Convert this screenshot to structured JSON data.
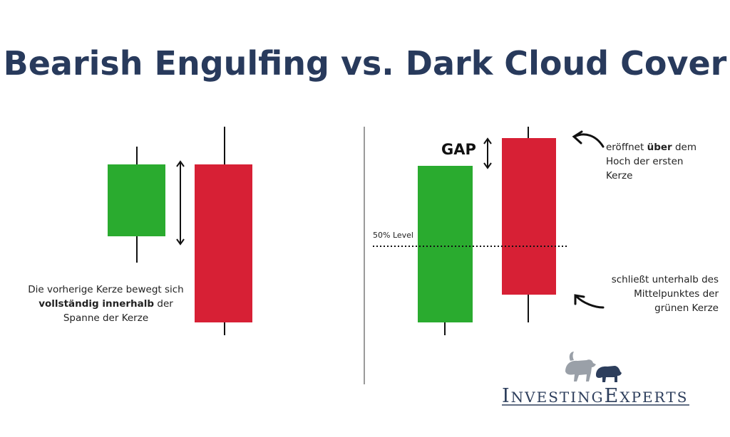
{
  "title": "Bearish Engulfing vs. Dark Cloud Cover",
  "left_panel": {
    "note_part1": "Die vorherige Kerze bewegt sich ",
    "note_bold": "vollständig innerhalb",
    "note_part2": " der Spanne der Kerze"
  },
  "right_panel": {
    "gap_label": "GAP",
    "level_label": "50% Level",
    "open_note_part1": "eröffnet ",
    "open_note_bold": "über",
    "open_note_part2": " dem Hoch der ersten Kerze",
    "close_note": "schließt unterhalb des Mittelpunktes der grünen Kerze"
  },
  "logo": {
    "brand_first_initial": "I",
    "brand_first_rest": "NVESTING",
    "brand_second_initial": "E",
    "brand_second_rest": "XPERTS"
  },
  "colors": {
    "bullish": "#2aab2f",
    "bearish": "#d72035",
    "title": "#283a5c"
  }
}
